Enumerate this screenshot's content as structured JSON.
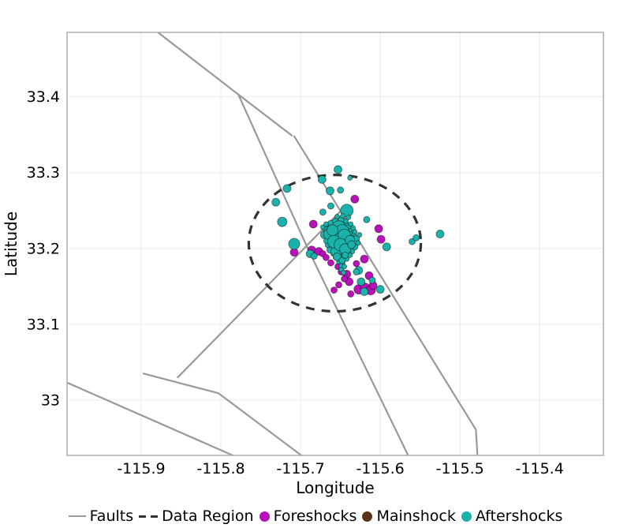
{
  "chart_data": {
    "type": "scatter",
    "title": "",
    "xlabel": "Longitude",
    "ylabel": "Latitude",
    "xlim": [
      -115.993,
      -115.32
    ],
    "ylim": [
      32.927,
      33.485
    ],
    "grid": true,
    "legend_position": "bottom",
    "x_ticks": [
      {
        "value": -115.9,
        "label": "-115.9"
      },
      {
        "value": -115.8,
        "label": "-115.8"
      },
      {
        "value": -115.7,
        "label": "-115.7"
      },
      {
        "value": -115.6,
        "label": "-115.6"
      },
      {
        "value": -115.5,
        "label": "-115.5"
      },
      {
        "value": -115.4,
        "label": "-115.4"
      }
    ],
    "y_ticks": [
      {
        "value": 33.0,
        "label": "33"
      },
      {
        "value": 33.1,
        "label": "33.1"
      },
      {
        "value": 33.2,
        "label": "33.2"
      },
      {
        "value": 33.3,
        "label": "33.3"
      },
      {
        "value": 33.4,
        "label": "33.4"
      }
    ],
    "faults": [
      [
        [
          -115.879,
          33.485
        ],
        [
          -115.778,
          33.403
        ],
        [
          -115.691,
          33.2
        ],
        [
          -115.651,
          33.113
        ],
        [
          -115.565,
          32.927
        ]
      ],
      [
        [
          -115.778,
          33.403
        ],
        [
          -115.711,
          33.349
        ]
      ],
      [
        [
          -115.708,
          33.348
        ],
        [
          -115.48,
          32.961
        ],
        [
          -115.478,
          32.927
        ]
      ],
      [
        [
          -115.65,
          33.249
        ],
        [
          -115.854,
          33.03
        ]
      ],
      [
        [
          -115.897,
          33.035
        ],
        [
          -115.803,
          33.009
        ],
        [
          -115.699,
          32.927
        ]
      ],
      [
        [
          -115.993,
          33.023
        ],
        [
          -115.785,
          32.927
        ]
      ]
    ],
    "data_region": {
      "shape": "ellipse",
      "center": [
        -115.657,
        33.207
      ],
      "semi_axis_lon": 0.108,
      "semi_axis_lat": 0.09
    },
    "series": [
      {
        "name": "Foreshocks",
        "color": "#BB11BB",
        "points": [
          [
            -115.632,
            33.265,
            5
          ],
          [
            -115.684,
            33.232,
            5
          ],
          [
            -115.708,
            33.195,
            5
          ],
          [
            -115.686,
            33.198,
            5
          ],
          [
            -115.677,
            33.196,
            5
          ],
          [
            -115.602,
            33.226,
            5
          ],
          [
            -115.599,
            33.212,
            5
          ],
          [
            -115.62,
            33.186,
            5
          ],
          [
            -115.658,
            33.145,
            4
          ],
          [
            -115.642,
            33.166,
            5
          ],
          [
            -115.639,
            33.156,
            5
          ],
          [
            -115.637,
            33.14,
            4
          ],
          [
            -115.627,
            33.146,
            6
          ],
          [
            -115.619,
            33.148,
            6
          ],
          [
            -115.612,
            33.145,
            6
          ],
          [
            -115.609,
            33.151,
            5
          ],
          [
            -115.614,
            33.164,
            5
          ],
          [
            -115.653,
            33.176,
            4
          ],
          [
            -115.649,
            33.169,
            4
          ],
          [
            -115.63,
            33.18,
            4
          ],
          [
            -115.672,
            33.193,
            4
          ],
          [
            -115.668,
            33.188,
            4
          ],
          [
            -115.662,
            33.181,
            4
          ],
          [
            -115.645,
            33.16,
            4
          ],
          [
            -115.652,
            33.152,
            4
          ]
        ]
      },
      {
        "name": "Mainshock",
        "color": "#5C3317",
        "points": [
          [
            -115.65,
            33.213,
            7
          ]
        ]
      },
      {
        "name": "Aftershocks",
        "color": "#1AB2AA",
        "points": [
          [
            -115.653,
            33.304,
            5
          ],
          [
            -115.673,
            33.291,
            5
          ],
          [
            -115.717,
            33.279,
            5
          ],
          [
            -115.663,
            33.276,
            5
          ],
          [
            -115.65,
            33.277,
            4
          ],
          [
            -115.638,
            33.293,
            3
          ],
          [
            -115.731,
            33.261,
            5
          ],
          [
            -115.723,
            33.235,
            6
          ],
          [
            -115.708,
            33.206,
            7
          ],
          [
            -115.688,
            33.193,
            5
          ],
          [
            -115.683,
            33.19,
            4
          ],
          [
            -115.672,
            33.248,
            4
          ],
          [
            -115.662,
            33.256,
            4
          ],
          [
            -115.642,
            33.25,
            8
          ],
          [
            -115.617,
            33.238,
            4
          ],
          [
            -115.592,
            33.202,
            5
          ],
          [
            -115.56,
            33.209,
            4
          ],
          [
            -115.555,
            33.214,
            4
          ],
          [
            -115.525,
            33.219,
            5
          ],
          [
            -115.627,
            33.171,
            5
          ],
          [
            -115.63,
            33.169,
            4
          ],
          [
            -115.624,
            33.156,
            5
          ],
          [
            -115.62,
            33.143,
            5
          ],
          [
            -115.6,
            33.146,
            5
          ],
          [
            -115.61,
            33.158,
            4
          ],
          [
            -115.66,
            33.23,
            6
          ],
          [
            -115.655,
            33.228,
            7
          ],
          [
            -115.65,
            33.232,
            5
          ],
          [
            -115.645,
            33.229,
            6
          ],
          [
            -115.64,
            33.227,
            4
          ],
          [
            -115.657,
            33.224,
            8
          ],
          [
            -115.651,
            33.223,
            6
          ],
          [
            -115.646,
            33.222,
            7
          ],
          [
            -115.641,
            33.221,
            5
          ],
          [
            -115.636,
            33.223,
            4
          ],
          [
            -115.662,
            33.22,
            5
          ],
          [
            -115.658,
            33.218,
            7
          ],
          [
            -115.653,
            33.219,
            8
          ],
          [
            -115.648,
            33.217,
            6
          ],
          [
            -115.643,
            33.218,
            5
          ],
          [
            -115.638,
            33.216,
            6
          ],
          [
            -115.633,
            33.218,
            3
          ],
          [
            -115.664,
            33.214,
            4
          ],
          [
            -115.659,
            33.213,
            6
          ],
          [
            -115.654,
            33.214,
            7
          ],
          [
            -115.65,
            33.212,
            8
          ],
          [
            -115.645,
            33.213,
            6
          ],
          [
            -115.64,
            33.212,
            5
          ],
          [
            -115.635,
            33.213,
            4
          ],
          [
            -115.661,
            33.208,
            5
          ],
          [
            -115.656,
            33.207,
            6
          ],
          [
            -115.652,
            33.208,
            7
          ],
          [
            -115.647,
            33.207,
            6
          ],
          [
            -115.642,
            33.208,
            5
          ],
          [
            -115.637,
            33.207,
            4
          ],
          [
            -115.658,
            33.203,
            5
          ],
          [
            -115.653,
            33.202,
            6
          ],
          [
            -115.649,
            33.203,
            7
          ],
          [
            -115.644,
            33.202,
            5
          ],
          [
            -115.639,
            33.203,
            4
          ],
          [
            -115.655,
            33.198,
            5
          ],
          [
            -115.65,
            33.197,
            6
          ],
          [
            -115.646,
            33.198,
            5
          ],
          [
            -115.641,
            33.197,
            4
          ],
          [
            -115.652,
            33.193,
            5
          ],
          [
            -115.648,
            33.192,
            5
          ],
          [
            -115.643,
            33.193,
            4
          ],
          [
            -115.65,
            33.188,
            4
          ],
          [
            -115.646,
            33.187,
            4
          ],
          [
            -115.651,
            33.183,
            4
          ],
          [
            -115.647,
            33.182,
            3
          ],
          [
            -115.649,
            33.177,
            3
          ],
          [
            -115.645,
            33.176,
            3
          ],
          [
            -115.668,
            33.225,
            4
          ],
          [
            -115.67,
            33.218,
            5
          ],
          [
            -115.667,
            33.21,
            4
          ],
          [
            -115.666,
            33.204,
            3
          ],
          [
            -115.663,
            33.198,
            4
          ],
          [
            -115.659,
            33.193,
            3
          ],
          [
            -115.656,
            33.188,
            3
          ],
          [
            -115.63,
            33.213,
            4
          ],
          [
            -115.628,
            33.207,
            3
          ],
          [
            -115.632,
            33.202,
            4
          ],
          [
            -115.635,
            33.196,
            3
          ],
          [
            -115.638,
            33.191,
            3
          ],
          [
            -115.642,
            33.186,
            3
          ],
          [
            -115.632,
            33.222,
            3
          ],
          [
            -115.626,
            33.218,
            3
          ],
          [
            -115.672,
            33.228,
            3
          ],
          [
            -115.662,
            33.233,
            4
          ],
          [
            -115.656,
            33.236,
            4
          ],
          [
            -115.649,
            33.238,
            4
          ],
          [
            -115.643,
            33.236,
            3
          ],
          [
            -115.637,
            33.232,
            3
          ],
          [
            -115.668,
            33.232,
            3
          ],
          [
            -115.654,
            33.242,
            3
          ],
          [
            -115.647,
            33.243,
            3
          ],
          [
            -115.64,
            33.241,
            3
          ],
          [
            -115.634,
            33.227,
            3
          ],
          [
            -115.657,
            33.215,
            9
          ],
          [
            -115.647,
            33.212,
            9
          ],
          [
            -115.652,
            33.227,
            9
          ],
          [
            -115.643,
            33.207,
            8
          ],
          [
            -115.655,
            33.196,
            7
          ],
          [
            -115.664,
            33.219,
            7
          ],
          [
            -115.648,
            33.222,
            9
          ],
          [
            -115.653,
            33.21,
            9
          ],
          [
            -115.645,
            33.217,
            8
          ],
          [
            -115.658,
            33.209,
            8
          ],
          [
            -115.65,
            33.205,
            8
          ],
          [
            -115.644,
            33.199,
            7
          ],
          [
            -115.66,
            33.224,
            7
          ],
          [
            -115.638,
            33.211,
            6
          ],
          [
            -115.636,
            33.205,
            5
          ],
          [
            -115.654,
            33.189,
            5
          ],
          [
            -115.648,
            33.184,
            4
          ],
          [
            -115.644,
            33.191,
            4
          ],
          [
            -115.649,
            33.172,
            3
          ],
          [
            -115.646,
            33.168,
            3
          ]
        ]
      }
    ]
  },
  "legend": {
    "items": [
      {
        "label": "Faults",
        "marker": "line",
        "color": "#999999"
      },
      {
        "label": "Data Region",
        "marker": "dash",
        "color": "#333333"
      },
      {
        "label": "Foreshocks",
        "marker": "dot",
        "color": "#BB11BB"
      },
      {
        "label": "Mainshock",
        "marker": "dot",
        "color": "#5C3317"
      },
      {
        "label": "Aftershocks",
        "marker": "dot",
        "color": "#1AB2AA"
      }
    ]
  },
  "colors": {
    "background": "#FFFFFF",
    "frame": "#ADADAD",
    "gridline": "#EBEBEB",
    "fault": "#999999",
    "data_region": "#333333",
    "foreshocks": "#BB11BB",
    "mainshock": "#5C3317",
    "aftershocks": "#1AB2AA",
    "tick_text": "#000000",
    "point_outline": "rgba(0,0,0,0.45)"
  }
}
